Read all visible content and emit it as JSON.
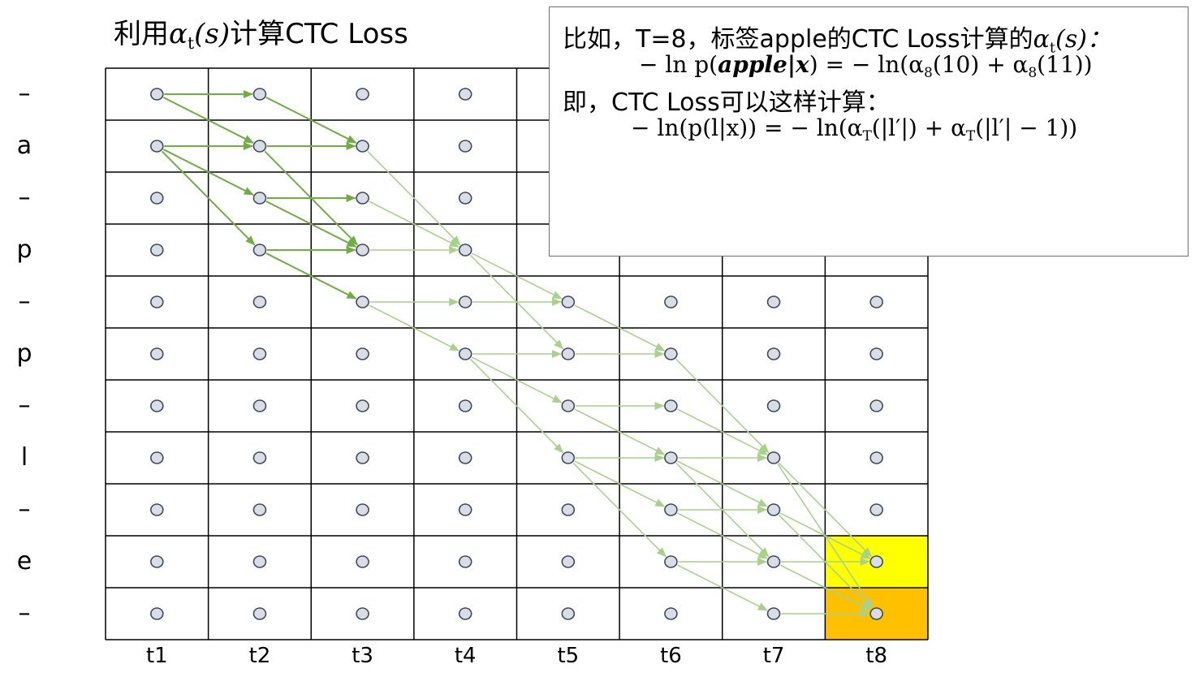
{
  "title": {
    "prefix": "利用",
    "alpha": "α",
    "alpha_sub": "t",
    "arg": "(s)",
    "suffix": "计算CTC Loss"
  },
  "labels": [
    "–",
    "a",
    "–",
    "p",
    "–",
    "p",
    "–",
    "l",
    "–",
    "e",
    "–"
  ],
  "time_steps": [
    "t1",
    "t2",
    "t3",
    "t4",
    "t5",
    "t6",
    "t7",
    "t8"
  ],
  "info": {
    "line1_prefix": "比如，T=8，标签apple的CTC Loss计算的",
    "line1_alpha": "α",
    "line1_alpha_sub": "t",
    "line1_arg": "(s)：",
    "formula1_lhs": "− ln p(",
    "formula1_bold": "apple|x",
    "formula1_rhs_a": ") = − ln(α",
    "formula1_sub_a": "8",
    "formula1_rhs_b": "(10) + α",
    "formula1_sub_b": "8",
    "formula1_rhs_c": "(11))",
    "line3": "即，CTC Loss可以这样计算：",
    "formula2_a": "− ln(p(l|x)) = − ln(α",
    "formula2_sub_a": "T",
    "formula2_b": "(|l′|) + α",
    "formula2_sub_b": "T",
    "formula2_c": "(|l′| − 1))"
  },
  "highlights": [
    {
      "col": 7,
      "row": 9,
      "color": "#ffff00"
    },
    {
      "col": 7,
      "row": 10,
      "color": "#ffc000"
    }
  ],
  "colors": {
    "grid_line": "#000000",
    "node_fill": "#d9dde6",
    "node_stroke": "#3f4a5a",
    "arrow_dark": "#70ad47",
    "arrow_light": "#a9d18e"
  },
  "paths": [
    [
      [
        0,
        0
      ],
      [
        1,
        0
      ],
      [
        2,
        1
      ],
      [
        3,
        3
      ],
      [
        4,
        4
      ],
      [
        5,
        5
      ],
      [
        6,
        7
      ],
      [
        7,
        9
      ]
    ],
    [
      [
        0,
        0
      ],
      [
        1,
        1
      ],
      [
        2,
        1
      ],
      [
        3,
        3
      ],
      [
        4,
        4
      ],
      [
        5,
        5
      ],
      [
        6,
        7
      ],
      [
        7,
        9
      ]
    ],
    [
      [
        0,
        1
      ],
      [
        1,
        1
      ],
      [
        2,
        1
      ],
      [
        3,
        3
      ],
      [
        4,
        4
      ],
      [
        5,
        5
      ],
      [
        6,
        7
      ],
      [
        7,
        9
      ]
    ],
    [
      [
        0,
        1
      ],
      [
        1,
        1
      ],
      [
        2,
        3
      ],
      [
        3,
        3
      ],
      [
        4,
        5
      ],
      [
        5,
        5
      ],
      [
        6,
        7
      ],
      [
        7,
        9
      ]
    ],
    [
      [
        0,
        1
      ],
      [
        1,
        2
      ],
      [
        2,
        2
      ],
      [
        3,
        3
      ],
      [
        4,
        4
      ],
      [
        5,
        5
      ],
      [
        6,
        7
      ],
      [
        7,
        9
      ]
    ],
    [
      [
        0,
        1
      ],
      [
        1,
        2
      ],
      [
        2,
        3
      ],
      [
        3,
        3
      ],
      [
        4,
        4
      ],
      [
        5,
        5
      ],
      [
        6,
        7
      ],
      [
        7,
        9
      ]
    ],
    [
      [
        0,
        1
      ],
      [
        1,
        3
      ],
      [
        2,
        3
      ],
      [
        3,
        3
      ],
      [
        4,
        4
      ],
      [
        5,
        5
      ],
      [
        6,
        7
      ],
      [
        7,
        9
      ]
    ],
    [
      [
        0,
        1
      ],
      [
        1,
        3
      ],
      [
        2,
        4
      ],
      [
        3,
        4
      ],
      [
        4,
        4
      ],
      [
        5,
        5
      ],
      [
        6,
        7
      ],
      [
        7,
        9
      ]
    ],
    [
      [
        0,
        1
      ],
      [
        1,
        3
      ],
      [
        2,
        4
      ],
      [
        3,
        5
      ],
      [
        4,
        5
      ],
      [
        5,
        5
      ],
      [
        6,
        7
      ],
      [
        7,
        9
      ]
    ],
    [
      [
        0,
        1
      ],
      [
        1,
        3
      ],
      [
        2,
        4
      ],
      [
        3,
        5
      ],
      [
        4,
        6
      ],
      [
        5,
        6
      ],
      [
        6,
        7
      ],
      [
        7,
        9
      ]
    ],
    [
      [
        0,
        1
      ],
      [
        1,
        3
      ],
      [
        2,
        4
      ],
      [
        3,
        5
      ],
      [
        4,
        6
      ],
      [
        5,
        7
      ],
      [
        6,
        7
      ],
      [
        7,
        9
      ]
    ],
    [
      [
        0,
        1
      ],
      [
        1,
        3
      ],
      [
        2,
        4
      ],
      [
        3,
        5
      ],
      [
        4,
        7
      ],
      [
        5,
        7
      ],
      [
        6,
        7
      ],
      [
        7,
        9
      ]
    ],
    [
      [
        0,
        1
      ],
      [
        1,
        3
      ],
      [
        2,
        4
      ],
      [
        3,
        5
      ],
      [
        4,
        7
      ],
      [
        5,
        7
      ],
      [
        6,
        8
      ],
      [
        7,
        9
      ]
    ],
    [
      [
        0,
        1
      ],
      [
        1,
        3
      ],
      [
        2,
        4
      ],
      [
        3,
        5
      ],
      [
        4,
        7
      ],
      [
        5,
        8
      ],
      [
        6,
        9
      ],
      [
        7,
        9
      ]
    ],
    [
      [
        0,
        1
      ],
      [
        1,
        3
      ],
      [
        2,
        4
      ],
      [
        3,
        5
      ],
      [
        4,
        7
      ],
      [
        5,
        9
      ],
      [
        6,
        9
      ],
      [
        7,
        9
      ]
    ],
    [
      [
        0,
        1
      ],
      [
        1,
        3
      ],
      [
        2,
        4
      ],
      [
        3,
        5
      ],
      [
        4,
        7
      ],
      [
        5,
        9
      ],
      [
        6,
        9
      ],
      [
        7,
        10
      ]
    ],
    [
      [
        0,
        1
      ],
      [
        1,
        3
      ],
      [
        2,
        4
      ],
      [
        3,
        5
      ],
      [
        4,
        7
      ],
      [
        5,
        9
      ],
      [
        6,
        10
      ],
      [
        7,
        10
      ]
    ],
    [
      [
        0,
        1
      ],
      [
        1,
        3
      ],
      [
        2,
        4
      ],
      [
        3,
        5
      ],
      [
        4,
        7
      ],
      [
        5,
        7
      ],
      [
        6,
        9
      ],
      [
        7,
        9
      ]
    ],
    [
      [
        0,
        1
      ],
      [
        1,
        3
      ],
      [
        2,
        4
      ],
      [
        3,
        5
      ],
      [
        4,
        7
      ],
      [
        5,
        7
      ],
      [
        6,
        9
      ],
      [
        7,
        10
      ]
    ],
    [
      [
        0,
        1
      ],
      [
        1,
        3
      ],
      [
        2,
        4
      ],
      [
        3,
        5
      ],
      [
        4,
        7
      ],
      [
        5,
        8
      ],
      [
        6,
        8
      ],
      [
        7,
        9
      ]
    ],
    [
      [
        0,
        1
      ],
      [
        1,
        3
      ],
      [
        2,
        4
      ],
      [
        3,
        5
      ],
      [
        4,
        7
      ],
      [
        5,
        7
      ],
      [
        6,
        8
      ],
      [
        7,
        10
      ]
    ],
    [
      [
        0,
        1
      ],
      [
        1,
        3
      ],
      [
        2,
        4
      ],
      [
        3,
        5
      ],
      [
        4,
        7
      ],
      [
        5,
        7
      ],
      [
        6,
        7
      ],
      [
        7,
        10
      ]
    ]
  ]
}
